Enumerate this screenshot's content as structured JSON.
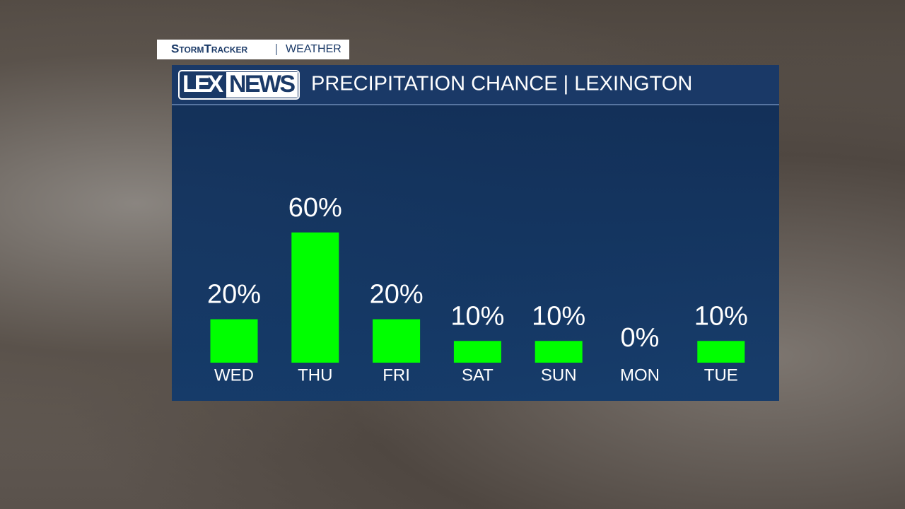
{
  "header": {
    "brand": "StormTracker",
    "section": "WEATHER",
    "logo_left": "LEX",
    "logo_right": "NEWS"
  },
  "chart_data": {
    "type": "bar",
    "title": "PRECIPITATION CHANCE | LEXINGTON",
    "categories": [
      "WED",
      "THU",
      "FRI",
      "SAT",
      "SUN",
      "MON",
      "TUE"
    ],
    "values": [
      20,
      60,
      20,
      10,
      10,
      0,
      10
    ],
    "value_labels": [
      "20%",
      "60%",
      "20%",
      "10%",
      "10%",
      "0%",
      "10%"
    ],
    "color": "#00ff00"
  }
}
